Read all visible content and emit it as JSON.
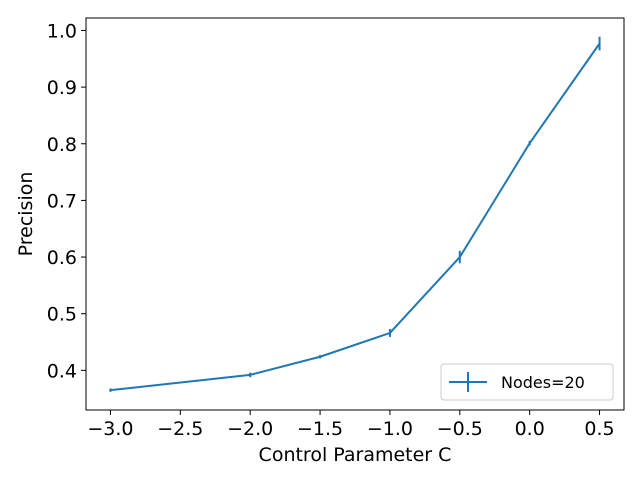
{
  "chart_data": {
    "type": "line",
    "title": "",
    "xlabel": "Control Parameter C",
    "ylabel": "Precision",
    "xlim": [
      -3.175,
      0.675
    ],
    "ylim": [
      0.33,
      1.022
    ],
    "x_ticks": [
      -3.0,
      -2.5,
      -2.0,
      -1.5,
      -1.0,
      -0.5,
      0.0,
      0.5
    ],
    "x_tick_labels": [
      "−3.0",
      "−2.5",
      "−2.0",
      "−1.5",
      "−1.0",
      "−0.5",
      "0.0",
      "0.5"
    ],
    "y_ticks": [
      0.4,
      0.5,
      0.6,
      0.7,
      0.8,
      0.9,
      1.0
    ],
    "y_tick_labels": [
      "0.4",
      "0.5",
      "0.6",
      "0.7",
      "0.8",
      "0.9",
      "1.0"
    ],
    "grid": false,
    "legend_position": "bottom-right",
    "color": "#1f77b4",
    "series": [
      {
        "name": "Nodes=20",
        "x": [
          -3.0,
          -2.0,
          -1.5,
          -1.0,
          -0.5,
          0.0,
          0.5
        ],
        "y": [
          0.365,
          0.392,
          0.424,
          0.466,
          0.6,
          0.801,
          0.977
        ],
        "yerr": [
          0.003,
          0.004,
          0.003,
          0.007,
          0.011,
          0.004,
          0.012
        ]
      }
    ]
  }
}
